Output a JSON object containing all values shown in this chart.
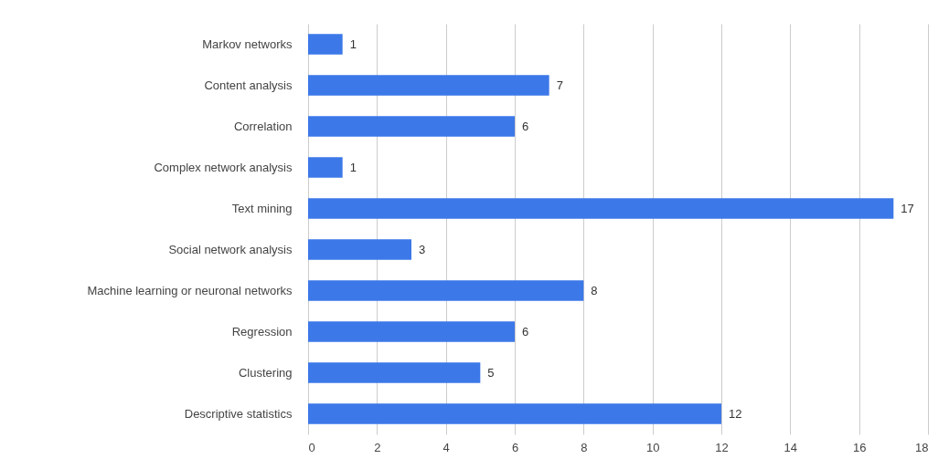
{
  "chart_data": {
    "type": "bar",
    "orientation": "horizontal",
    "categories": [
      "Markov networks",
      "Content analysis",
      "Correlation",
      "Complex network analysis",
      "Text mining",
      "Social network analysis",
      "Machine learning or neuronal networks",
      "Regression",
      "Clustering",
      "Descriptive statistics"
    ],
    "values": [
      1,
      7,
      6,
      1,
      17,
      3,
      8,
      6,
      5,
      12
    ],
    "color": "#3c78e8",
    "xlim": [
      0,
      18
    ],
    "xticks": [
      0,
      2,
      4,
      6,
      8,
      10,
      12,
      14,
      16,
      18
    ],
    "grid": "x",
    "data_labels": true
  }
}
